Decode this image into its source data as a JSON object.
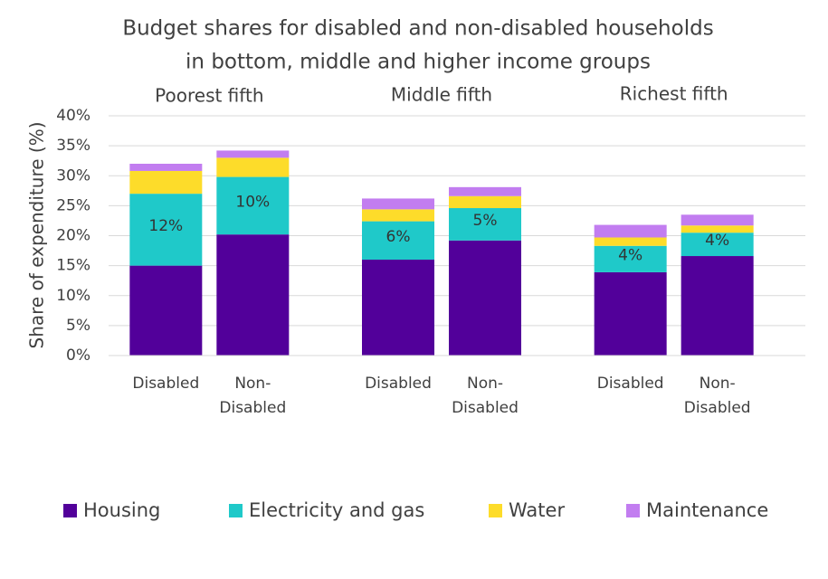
{
  "chart_data": {
    "type": "stacked_bar",
    "title": [
      "Budget shares for disabled and non-disabled households",
      "in bottom, middle and higher income groups"
    ],
    "y_label": "Share of expenditure (%)",
    "groups": [
      "Poorest fifth",
      "Middle fifth",
      "Richest fifth"
    ],
    "categories": [
      "Disabled",
      "Non-Disabled",
      "Disabled",
      "Non-Disabled",
      "Disabled",
      "Non-Disabled"
    ],
    "series": [
      {
        "name": "Housing",
        "color": "#52009a",
        "values": [
          15,
          20.2,
          16,
          19.2,
          13.9,
          16.6
        ]
      },
      {
        "name": "Electricity and gas",
        "color": "#1fc9c9",
        "values": [
          12,
          9.6,
          6.4,
          5.4,
          4.4,
          3.9
        ],
        "value_labels": [
          "12%",
          "10%",
          "6%",
          "5%",
          "4%",
          "4%"
        ]
      },
      {
        "name": "Water",
        "color": "#fddc2a",
        "values": [
          3.8,
          3.2,
          2,
          2,
          1.4,
          1.2
        ]
      },
      {
        "name": "Maintenance",
        "color": "#c27df0",
        "values": [
          1.2,
          1.2,
          1.8,
          1.5,
          2.1,
          1.8
        ]
      }
    ],
    "ylim": [
      0,
      40
    ],
    "yticks": [
      {
        "value": 0,
        "label": "0%"
      },
      {
        "value": 5,
        "label": "5%"
      },
      {
        "value": 10,
        "label": "10%"
      },
      {
        "value": 15,
        "label": "15%"
      },
      {
        "value": 20,
        "label": "20%"
      },
      {
        "value": 25,
        "label": "25%"
      },
      {
        "value": 30,
        "label": "30%"
      },
      {
        "value": 35,
        "label": "35%"
      },
      {
        "value": 40,
        "label": "40%"
      }
    ],
    "grid": true
  }
}
